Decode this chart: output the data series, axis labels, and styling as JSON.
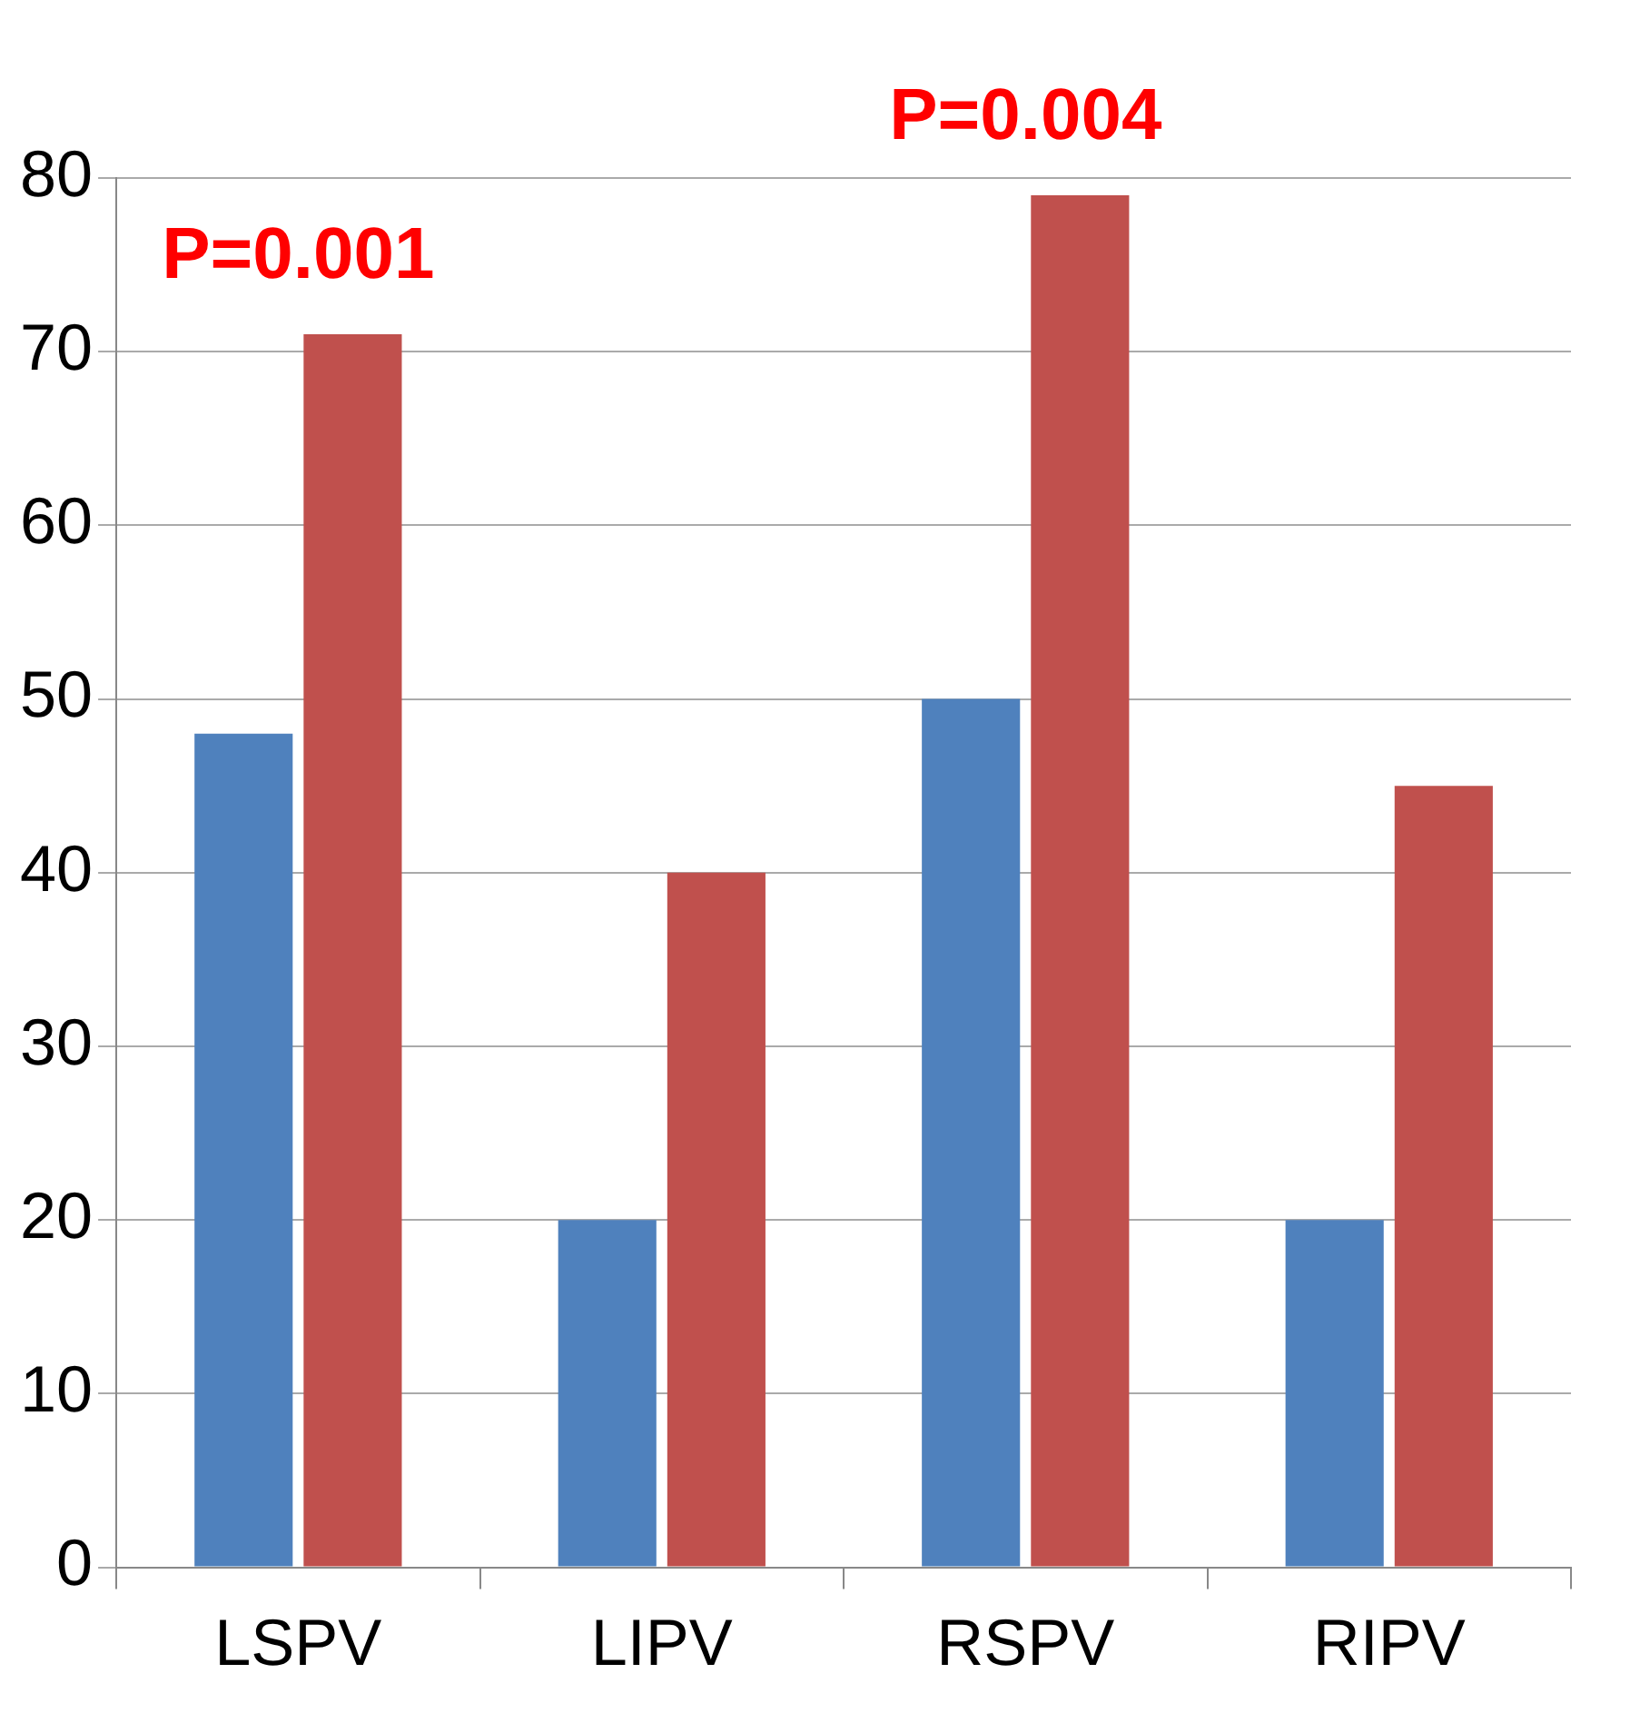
{
  "chart_data": {
    "type": "bar",
    "categories": [
      "LSPV",
      "LIPV",
      "RSPV",
      "RIPV"
    ],
    "series": [
      {
        "color": "#4f81bd",
        "values": [
          48,
          20,
          50,
          20
        ]
      },
      {
        "color": "#c0504d",
        "values": [
          71,
          40,
          79,
          45
        ]
      }
    ],
    "ylim": [
      0,
      80
    ],
    "yticks": [
      0,
      10,
      20,
      30,
      40,
      50,
      60,
      70,
      80
    ],
    "grid": "y",
    "annotations": [
      "P=0.001",
      "P=0.004"
    ]
  }
}
